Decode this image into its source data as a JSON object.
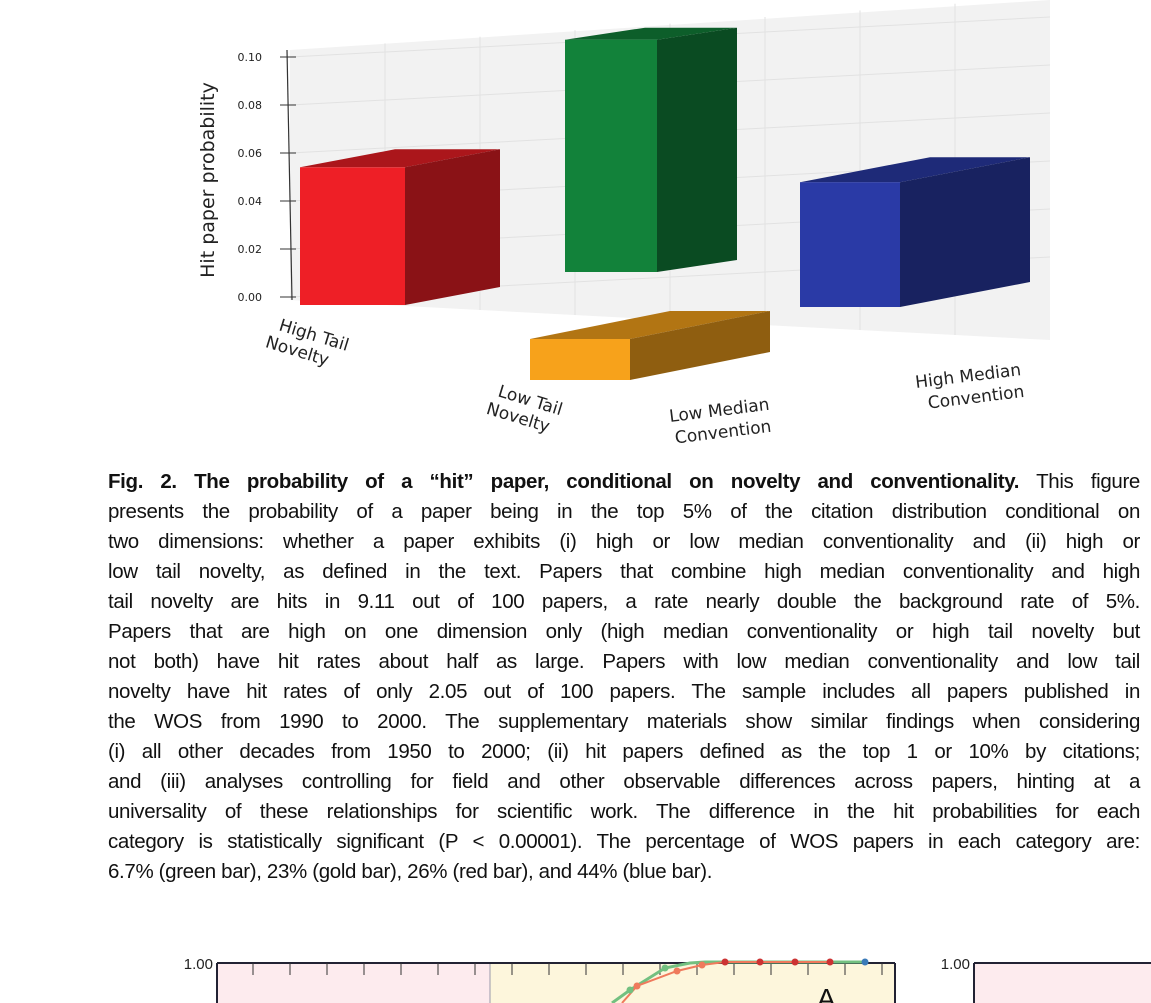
{
  "chart_data": {
    "type": "bar",
    "subtype": "3d-bar",
    "ylabel": "Hit paper probability",
    "ylim": [
      0,
      0.11
    ],
    "yticks": [
      "0.00",
      "0.02",
      "0.04",
      "0.06",
      "0.08",
      "0.10"
    ],
    "categories": [
      "High Tail Novelty",
      "Low Tail Novelty",
      "Low Median Convention",
      "High Median Convention"
    ],
    "bars": [
      {
        "label": "High Tail Novelty / Low Median Convention",
        "color": "#ee1f26",
        "value": 0.054
      },
      {
        "label": "High Tail Novelty / High Median Convention",
        "color": "#12823a",
        "value": 0.0911
      },
      {
        "label": "Low Tail Novelty / Low Median Convention",
        "color": "#f7a21b",
        "value": 0.0205
      },
      {
        "label": "Low Tail Novelty / High Median Convention",
        "color": "#2a3aa6",
        "value": 0.052
      }
    ],
    "axis_labels": {
      "high_tail": [
        "High Tail",
        "Novelty"
      ],
      "low_tail": [
        "Low Tail",
        "Novelty"
      ],
      "low_median": [
        "Low Median",
        "Convention"
      ],
      "high_median": [
        "High Median",
        "Convention"
      ]
    },
    "grid": true
  },
  "caption": {
    "title": "Fig. 2. The probability of a “hit” paper, conditional on novelty and conventionality.",
    "first_line_rest": " This figure",
    "lines": [
      "presents the probability of a paper being in the top 5% of the citation distribution conditional on",
      "two dimensions: whether a paper exhibits (i) high or low median conventionality and (ii) high or",
      "low tail novelty, as defined in the text. Papers that combine high median conventionality and high",
      "tail novelty are hits in 9.11 out of 100 papers, a rate nearly double the background rate of 5%.",
      "Papers that are high on one dimension only (high median conventionality or high tail novelty but",
      "not both) have hit rates about half as large. Papers with low median conventionality and low tail",
      "novelty have hit rates of only 2.05 out of 100 papers. The sample includes all papers published in",
      "the WOS from 1990 to 2000. The supplementary materials show similar findings when considering",
      "(i) all other decades from 1950 to 2000; (ii) hit papers defined as the top 1 or 10% by citations;",
      "and (iii) analyses controlling for field and other observable differences across papers, hinting at a",
      "universality of these relationships for scientific work. The difference in the hit probabilities for each",
      "category is statistically significant (P < 0.00001). The percentage of WOS papers in each category are:",
      "6.7% (green bar), 23% (gold bar), 26% (red bar), and 44% (blue bar)."
    ]
  },
  "next_figure": {
    "left_ytick": "1.00",
    "right_ytick": "1.00",
    "panel_letter": "A"
  }
}
